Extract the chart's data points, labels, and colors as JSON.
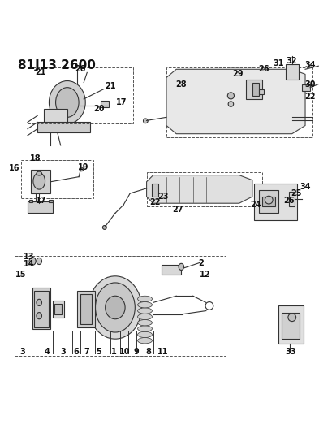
{
  "title": "81J13 2600",
  "bg_color": "#ffffff",
  "line_color": "#222222",
  "text_color": "#111111",
  "title_fontsize": 11,
  "label_fontsize": 7,
  "fig_width": 4.1,
  "fig_height": 5.33,
  "dpi": 100
}
